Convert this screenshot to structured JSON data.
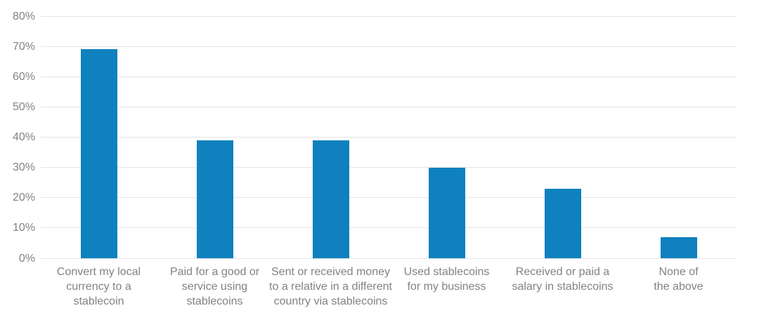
{
  "chart_data": {
    "type": "bar",
    "title": "",
    "xlabel": "",
    "ylabel": "",
    "ylim": [
      0,
      80
    ],
    "grid": true,
    "legend_position": "none",
    "categories": [
      "Convert my local currency to a stablecoin",
      "Paid for a good or service using stablecoins",
      "Sent or received money to a relative in a different country via stablecoins",
      "Used stablecoins for my business",
      "Received or paid a salary in stablecoins",
      "None of the above"
    ],
    "category_lines": [
      [
        "Convert my local",
        "currency to a",
        "stablecoin"
      ],
      [
        "Paid for a good or",
        "service using",
        "stablecoins"
      ],
      [
        "Sent or received money",
        "to a relative in a different",
        "country via stablecoins"
      ],
      [
        "Used stablecoins",
        "for my business"
      ],
      [
        "Received or paid a",
        "salary in stablecoins"
      ],
      [
        "None of",
        "the above"
      ]
    ],
    "values": [
      69,
      39,
      39,
      30,
      23,
      7
    ],
    "yticks": [
      {
        "value": 0,
        "label": "0%"
      },
      {
        "value": 10,
        "label": "10%"
      },
      {
        "value": 20,
        "label": "20%"
      },
      {
        "value": 30,
        "label": "30%"
      },
      {
        "value": 40,
        "label": "40%"
      },
      {
        "value": 50,
        "label": "50%"
      },
      {
        "value": 60,
        "label": "60%"
      },
      {
        "value": 70,
        "label": "70%"
      },
      {
        "value": 80,
        "label": "80%"
      }
    ],
    "colors": {
      "bar": "#0e81be",
      "axis_text": "#808285",
      "gridline": "#e4e4e5",
      "background": "#ffffff"
    }
  }
}
